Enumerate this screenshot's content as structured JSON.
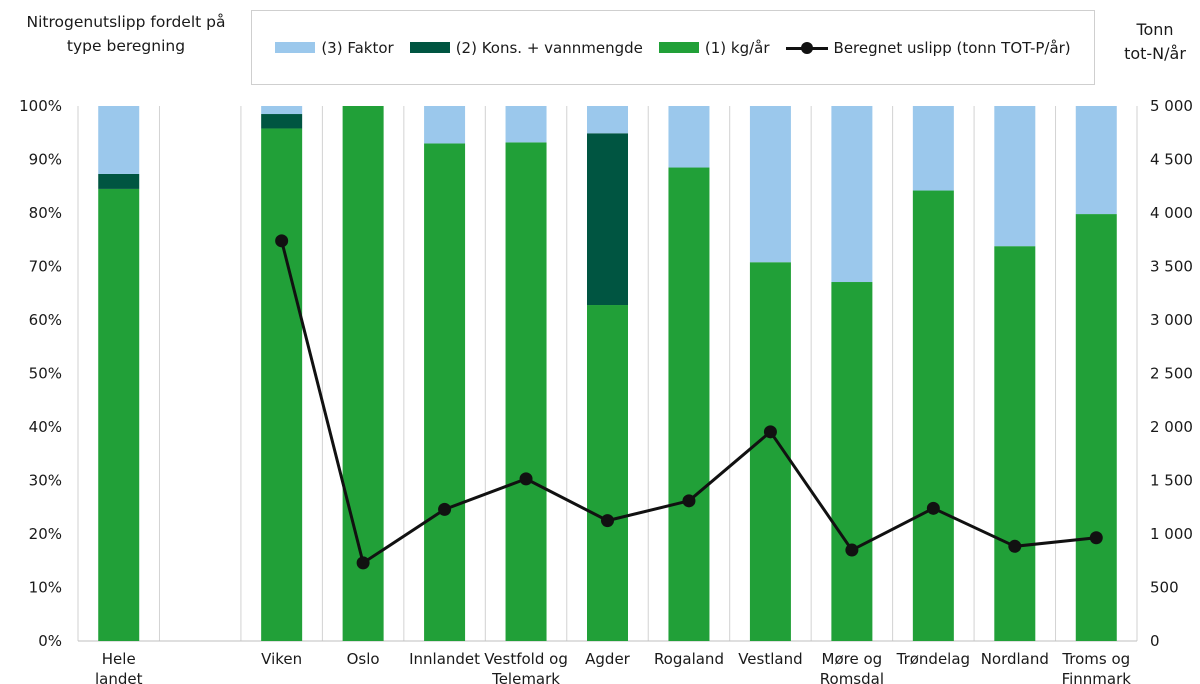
{
  "chart": {
    "left_axis_title": [
      "Nitrogenutslipp fordelt på",
      "type beregning"
    ],
    "right_axis_title": [
      "Tonn",
      "tot-N/år"
    ],
    "legend": {
      "faktor": "(3) Faktor",
      "kons": "(2) Kons. + vannmengde",
      "kg": "(1) kg/år",
      "line": "Beregnet uslipp (tonn TOT-P/år)"
    }
  },
  "chart_data": {
    "type": "bar",
    "stacked": true,
    "categories": [
      [
        "Hele",
        "landet"
      ],
      [
        ""
      ],
      [
        "Viken"
      ],
      [
        "Oslo"
      ],
      [
        "Innlandet"
      ],
      [
        "Vestfold og",
        "Telemark"
      ],
      [
        "Agder"
      ],
      [
        "Rogaland"
      ],
      [
        "Vestland"
      ],
      [
        "Møre og",
        "Romsdal"
      ],
      [
        "Trøndelag"
      ],
      [
        "Nordland"
      ],
      [
        "Troms og",
        "Finnmark"
      ]
    ],
    "series": [
      {
        "name": "(1) kg/år",
        "color": "#21a038",
        "axis": "left",
        "unit": "%",
        "values": [
          84.5,
          null,
          95.8,
          100,
          93.0,
          93.2,
          62.8,
          88.5,
          70.8,
          67.1,
          84.2,
          73.8,
          79.8
        ]
      },
      {
        "name": "(2) Kons. + vannmengde",
        "color": "#005541",
        "axis": "left",
        "unit": "%",
        "values": [
          2.8,
          null,
          2.7,
          0,
          0,
          0,
          32.1,
          0,
          0,
          0,
          0,
          0,
          0
        ]
      },
      {
        "name": "(3) Faktor",
        "color": "#9bc8ec",
        "axis": "left",
        "unit": "%",
        "values": [
          12.7,
          null,
          1.5,
          0,
          7.0,
          6.8,
          5.1,
          11.5,
          29.2,
          32.9,
          15.8,
          26.2,
          20.2
        ]
      },
      {
        "name": "Beregnet uslipp (tonn TOT-P/år)",
        "type": "line",
        "color": "#111111",
        "axis": "right",
        "unit": "tonn",
        "values": [
          null,
          null,
          3740,
          730,
          1230,
          1515,
          1125,
          1310,
          1955,
          850,
          1240,
          885,
          965
        ]
      }
    ],
    "left_axis": {
      "min": 0,
      "max": 100,
      "step": 10,
      "unit": "%"
    },
    "right_axis": {
      "min": 0,
      "max": 5000,
      "step": 500,
      "tick_labels": [
        "0",
        "500",
        "1 000",
        "1 500",
        "2 000",
        "2 500",
        "3 000",
        "3 500",
        "4 000",
        "4 500",
        "5 000"
      ]
    },
    "grid": "vertical",
    "legend_position": "top"
  }
}
